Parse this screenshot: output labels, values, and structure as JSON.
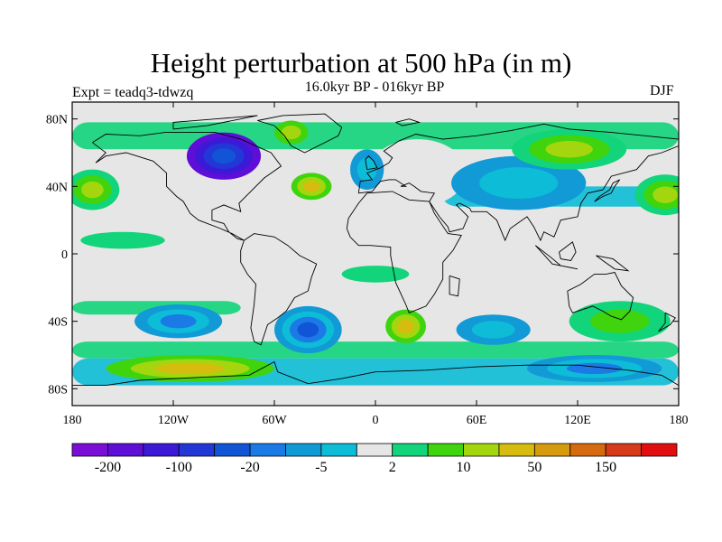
{
  "title": "Height perturbation at 500 hPa (in m)",
  "subtitle": "16.0kyr BP - 016kyr BP",
  "experiment_label": "Expt = teadq3-tdwzq",
  "season_label": "DJF",
  "map": {
    "lon_range": [
      -180,
      180
    ],
    "lat_range": [
      -90,
      90
    ],
    "y_ticks": [
      {
        "value": 80,
        "label": "80N"
      },
      {
        "value": 40,
        "label": "40N"
      },
      {
        "value": 0,
        "label": "0"
      },
      {
        "value": -40,
        "label": "40S"
      },
      {
        "value": -80,
        "label": "80S"
      }
    ],
    "x_ticks": [
      {
        "value": -180,
        "label": "180"
      },
      {
        "value": -120,
        "label": "120W"
      },
      {
        "value": -60,
        "label": "60W"
      },
      {
        "value": 0,
        "label": "0"
      },
      {
        "value": 60,
        "label": "60E"
      },
      {
        "value": 120,
        "label": "120E"
      },
      {
        "value": 180,
        "label": "180"
      }
    ]
  },
  "colorbar": {
    "colors": [
      "#7a0ed6",
      "#5e0ed6",
      "#3c19d6",
      "#2238d6",
      "#1155d6",
      "#1b7ae6",
      "#119ad6",
      "#0dbcd6",
      "#e6e6e6",
      "#12d47a",
      "#3fd40e",
      "#a3d60e",
      "#d6bc0e",
      "#d69a0e",
      "#d66a0e",
      "#d63a1b",
      "#e00e0e"
    ],
    "labels": [
      {
        "text": "-200",
        "boundary": 1
      },
      {
        "text": "-100",
        "boundary": 3
      },
      {
        "text": "-20",
        "boundary": 5
      },
      {
        "text": "-5",
        "boundary": 7
      },
      {
        "text": "2",
        "boundary": 9
      },
      {
        "text": "10",
        "boundary": 11
      },
      {
        "text": "50",
        "boundary": 13
      },
      {
        "text": "150",
        "boundary": 15
      }
    ]
  },
  "anomalies": [
    {
      "name": "north-america-low",
      "lon": -90,
      "lat": 58,
      "rx": 22,
      "ry": 14,
      "levels": [
        1,
        2,
        3,
        4
      ]
    },
    {
      "name": "greenland-high",
      "lon": -50,
      "lat": 72,
      "rx": 10,
      "ry": 7,
      "levels": [
        10,
        11
      ]
    },
    {
      "name": "north-atlantic-high",
      "lon": -38,
      "lat": 40,
      "rx": 12,
      "ry": 8,
      "levels": [
        10,
        11,
        12
      ]
    },
    {
      "name": "eastern-europe-high",
      "lon": 25,
      "lat": 48,
      "rx": 20,
      "ry": 14,
      "levels": [
        10,
        11,
        12,
        13
      ]
    },
    {
      "name": "eastern-europe-ring",
      "lon": 25,
      "lat": 48,
      "rx": 29,
      "ry": 20,
      "levels": [
        8
      ]
    },
    {
      "name": "north-atlantic-low",
      "lon": -5,
      "lat": 50,
      "rx": 10,
      "ry": 12,
      "levels": [
        6,
        7
      ]
    },
    {
      "name": "asia-low",
      "lon": 85,
      "lat": 42,
      "rx": 40,
      "ry": 16,
      "levels": [
        6,
        7
      ]
    },
    {
      "name": "siberia-high",
      "lon": 115,
      "lat": 62,
      "rx": 34,
      "ry": 12,
      "levels": [
        9,
        10,
        11
      ]
    },
    {
      "name": "north-pacific-high",
      "lon": 172,
      "lat": 35,
      "rx": 18,
      "ry": 12,
      "levels": [
        9,
        10,
        11
      ]
    },
    {
      "name": "east-pacific-high",
      "lon": -168,
      "lat": 38,
      "rx": 16,
      "ry": 12,
      "levels": [
        9,
        10,
        11
      ]
    },
    {
      "name": "south-pacific-low",
      "lon": -117,
      "lat": -40,
      "rx": 26,
      "ry": 10,
      "levels": [
        6,
        7,
        5
      ]
    },
    {
      "name": "south-atlantic-low",
      "lon": -40,
      "lat": -45,
      "rx": 20,
      "ry": 14,
      "levels": [
        6,
        7,
        5,
        4
      ]
    },
    {
      "name": "south-africa-high",
      "lon": 18,
      "lat": -43,
      "rx": 12,
      "ry": 10,
      "levels": [
        10,
        11,
        12
      ]
    },
    {
      "name": "south-indian-low",
      "lon": 70,
      "lat": -45,
      "rx": 22,
      "ry": 9,
      "levels": [
        6,
        7
      ]
    },
    {
      "name": "australia-high",
      "lon": 145,
      "lat": -40,
      "rx": 30,
      "ry": 12,
      "levels": [
        9,
        10
      ]
    },
    {
      "name": "southern-ocean-high",
      "lon": -110,
      "lat": -68,
      "rx": 50,
      "ry": 8,
      "levels": [
        10,
        11,
        12
      ]
    },
    {
      "name": "southern-ocean-low",
      "lon": 130,
      "lat": -68,
      "rx": 40,
      "ry": 8,
      "levels": [
        6,
        7,
        5
      ]
    },
    {
      "name": "tropical-west-band",
      "lon": -150,
      "lat": 8,
      "rx": 25,
      "ry": 5,
      "levels": [
        9
      ]
    },
    {
      "name": "tropical-africa-band",
      "lon": 0,
      "lat": -12,
      "rx": 20,
      "ry": 5,
      "levels": [
        9
      ]
    }
  ]
}
